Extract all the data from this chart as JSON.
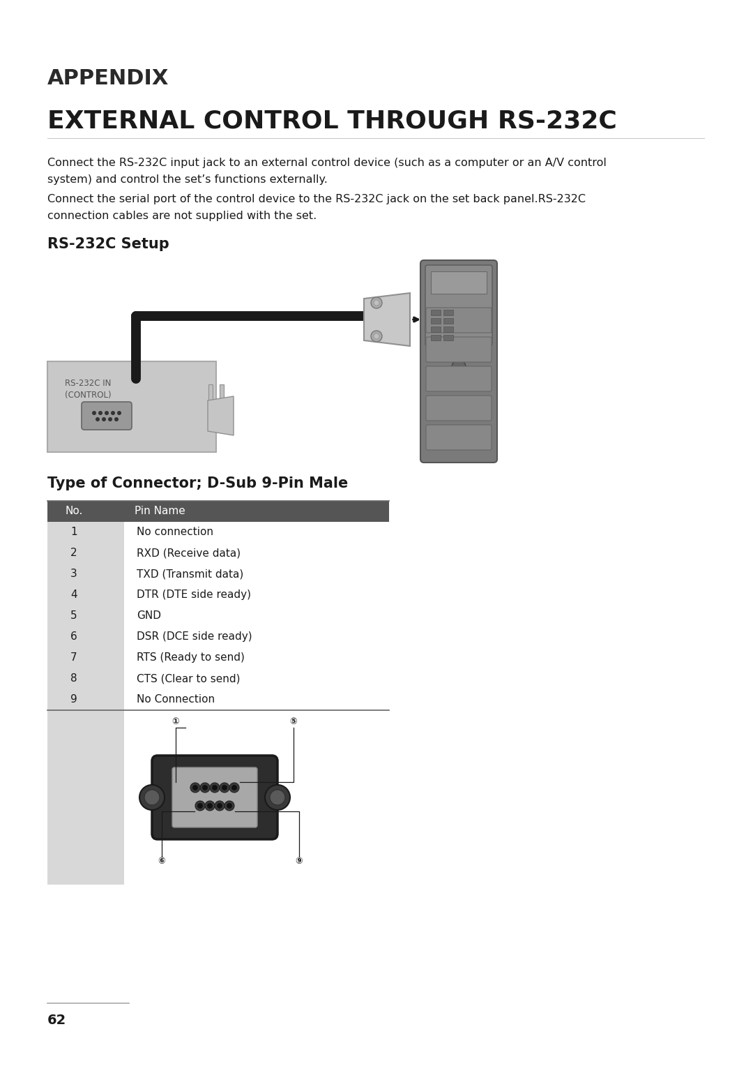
{
  "title_appendix": "APPENDIX",
  "title_main": "EXTERNAL CONTROL THROUGH RS-232C",
  "section1_title": "RS-232C Setup",
  "section2_title": "Type of Connector; D-Sub 9-Pin Male",
  "para1_line1": "Connect the RS-232C input jack to an external control device (such as a computer or an A/V control",
  "para1_line2": "system) and control the set’s functions externally.",
  "para2_line1": "Connect the serial port of the control device to the RS-232C jack on the set back panel.RS-232C",
  "para2_line2": "connection cables are not supplied with the set.",
  "table_header": [
    "No.",
    "Pin Name"
  ],
  "table_rows": [
    [
      "1",
      "No connection"
    ],
    [
      "2",
      "RXD (Receive data)"
    ],
    [
      "3",
      "TXD (Transmit data)"
    ],
    [
      "4",
      "DTR (DTE side ready)"
    ],
    [
      "5",
      "GND"
    ],
    [
      "6",
      "DSR (DCE side ready)"
    ],
    [
      "7",
      "RTS (Ready to send)"
    ],
    [
      "8",
      "CTS (Clear to send)"
    ],
    [
      "9",
      "No Connection"
    ]
  ],
  "page_number": "62",
  "bg_color": "#ffffff",
  "header_bg": "#555555",
  "header_fg": "#ffffff",
  "table_left_bg": "#d8d8d8",
  "body_text_color": "#1a1a1a",
  "title_color": "#1a1a1a",
  "connector_label_line1": "RS-232C IN",
  "connector_label_line2": "(CONTROL)"
}
